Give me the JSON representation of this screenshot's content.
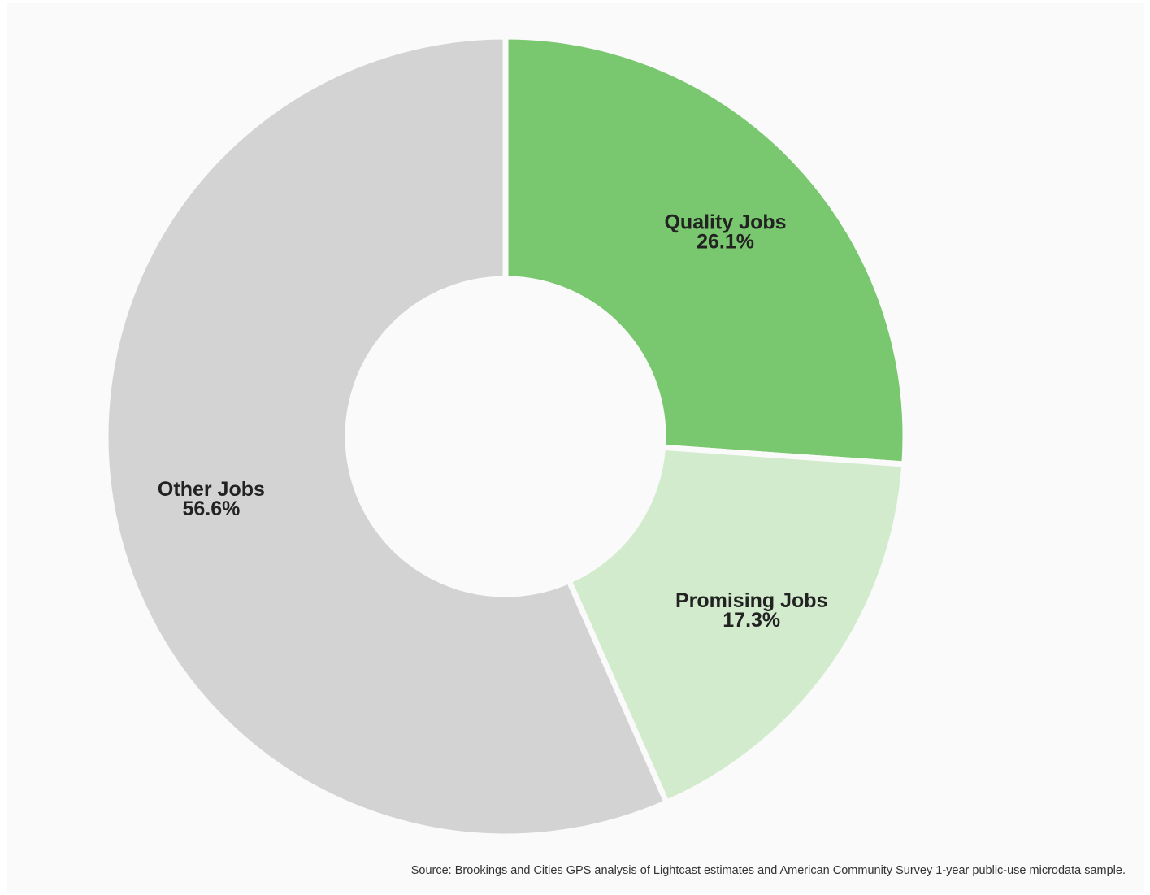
{
  "chart_data": {
    "type": "pie",
    "donut": true,
    "slices": [
      {
        "name": "Quality Jobs",
        "value": 26.1,
        "value_label": "26.1%",
        "color": "#79c76f"
      },
      {
        "name": "Promising Jobs",
        "value": 17.3,
        "value_label": "17.3%",
        "color": "#d2ebcc"
      },
      {
        "name": "Other Jobs",
        "value": 56.6,
        "value_label": "56.6%",
        "color": "#d3d3d3"
      }
    ],
    "background_color": "#fafafa"
  },
  "source_note": "Source: Brookings and Cities GPS analysis of Lightcast estimates and American Community Survey 1-year public-use microdata sample."
}
